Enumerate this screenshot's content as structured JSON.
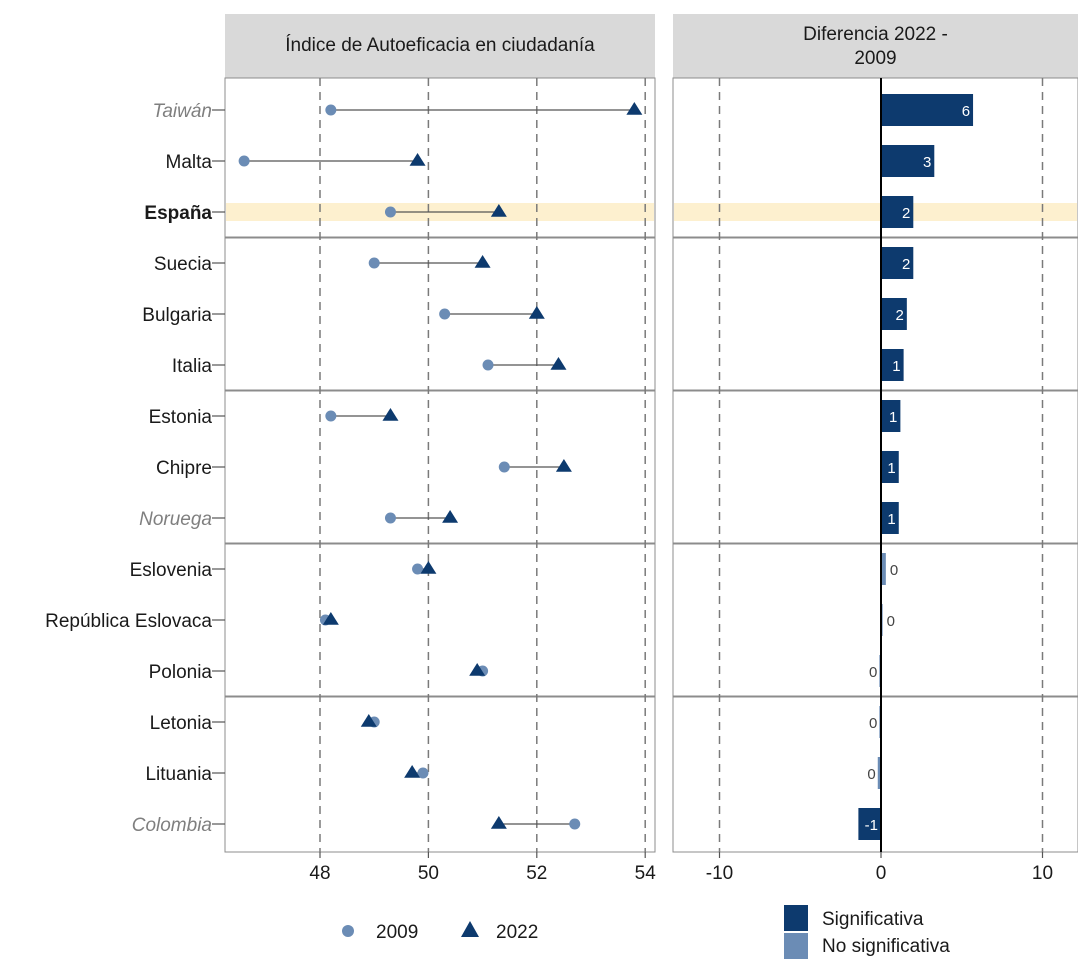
{
  "chart_data": [
    {
      "type": "dumbbell",
      "title": "Índice de Autoeficacia en ciudadanía",
      "xlim": [
        46.5,
        54.1
      ],
      "x_ticks": [
        48,
        50,
        52,
        54
      ],
      "grid": "vertical dashed",
      "series": [
        {
          "name": "2009",
          "marker": "circle",
          "color": "#6b8cb5"
        },
        {
          "name": "2022",
          "marker": "triangle",
          "color": "#0d3a6e"
        }
      ],
      "rows": [
        {
          "country": "Taiwán",
          "style": "italic",
          "v2009": 48.2,
          "v2022": 53.8
        },
        {
          "country": "Malta",
          "style": "normal",
          "v2009": 46.6,
          "v2022": 49.8
        },
        {
          "country": "España",
          "style": "bold",
          "v2009": 49.3,
          "v2022": 51.3,
          "highlight": true
        },
        {
          "country": "Suecia",
          "style": "normal",
          "v2009": 49.0,
          "v2022": 51.0
        },
        {
          "country": "Bulgaria",
          "style": "normal",
          "v2009": 50.3,
          "v2022": 52.0
        },
        {
          "country": "Italia",
          "style": "normal",
          "v2009": 51.1,
          "v2022": 52.4
        },
        {
          "country": "Estonia",
          "style": "normal",
          "v2009": 48.2,
          "v2022": 49.3
        },
        {
          "country": "Chipre",
          "style": "normal",
          "v2009": 51.4,
          "v2022": 52.5
        },
        {
          "country": "Noruega",
          "style": "italic",
          "v2009": 49.3,
          "v2022": 50.4
        },
        {
          "country": "Eslovenia",
          "style": "normal",
          "v2009": 49.8,
          "v2022": 50.0
        },
        {
          "country": "República Eslovaca",
          "style": "normal",
          "v2009": 48.1,
          "v2022": 48.2
        },
        {
          "country": "Polonia",
          "style": "normal",
          "v2009": 51.0,
          "v2022": 50.9
        },
        {
          "country": "Letonia",
          "style": "normal",
          "v2009": 49.0,
          "v2022": 48.9
        },
        {
          "country": "Lituania",
          "style": "normal",
          "v2009": 49.9,
          "v2022": 49.7
        },
        {
          "country": "Colombia",
          "style": "italic",
          "v2009": 52.7,
          "v2022": 51.3
        }
      ],
      "group_breaks_after": [
        "España",
        "Italia",
        "Noruega",
        "Polonia"
      ]
    },
    {
      "type": "bar",
      "orientation": "horizontal",
      "title": "Diferencia 2022 - 2009",
      "xlim": [
        -12.3,
        12.2
      ],
      "x_ticks": [
        -10,
        0,
        10
      ],
      "grid": "vertical dashed",
      "legend": [
        {
          "label": "Significativa",
          "color": "#0d3a6e"
        },
        {
          "label": "No significativa",
          "color": "#6b8cb5"
        }
      ],
      "values": [
        5.7,
        3.3,
        2.0,
        2.0,
        1.6,
        1.4,
        1.2,
        1.1,
        1.1,
        0.3,
        0.1,
        -0.1,
        -0.1,
        -0.2,
        -1.4
      ],
      "labels": [
        "6",
        "3",
        "2",
        "2",
        "2",
        "1",
        "1",
        "1",
        "1",
        "0",
        "0",
        "0",
        "0",
        "0",
        "-1"
      ],
      "significant": [
        true,
        true,
        true,
        true,
        true,
        true,
        true,
        true,
        true,
        false,
        false,
        false,
        false,
        false,
        true
      ]
    }
  ]
}
